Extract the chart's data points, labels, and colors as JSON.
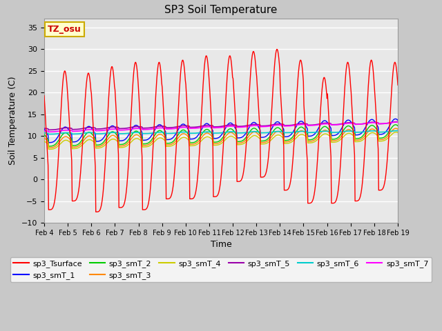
{
  "title": "SP3 Soil Temperature",
  "xlabel": "Time",
  "ylabel": "Soil Temperature (C)",
  "ylim": [
    -10,
    37
  ],
  "yticks": [
    -10,
    -5,
    0,
    5,
    10,
    15,
    20,
    25,
    30,
    35
  ],
  "xlim_days": 15,
  "xtick_labels": [
    "Feb 4",
    "Feb 5",
    "Feb 6",
    "Feb 7",
    "Feb 8",
    "Feb 9",
    "Feb 10",
    "Feb 11",
    "Feb 12",
    "Feb 13",
    "Feb 14",
    "Feb 15",
    "Feb 16",
    "Feb 17",
    "Feb 18",
    "Feb 19"
  ],
  "annotation_text": "TZ_osu",
  "annotation_color": "#cc0000",
  "annotation_bg": "#ffffcc",
  "annotation_border": "#ccaa00",
  "series_colors": {
    "sp3_Tsurface": "#ff0000",
    "sp3_smT_1": "#0000ff",
    "sp3_smT_2": "#00cc00",
    "sp3_smT_3": "#ff8800",
    "sp3_smT_4": "#cccc00",
    "sp3_smT_5": "#9900aa",
    "sp3_smT_6": "#00cccc",
    "sp3_smT_7": "#ff00ff"
  },
  "plot_bg": "#e8e8e8",
  "fig_bg": "#c8c8c8",
  "grid_color": "#ffffff",
  "font_size": 9,
  "title_font_size": 11
}
